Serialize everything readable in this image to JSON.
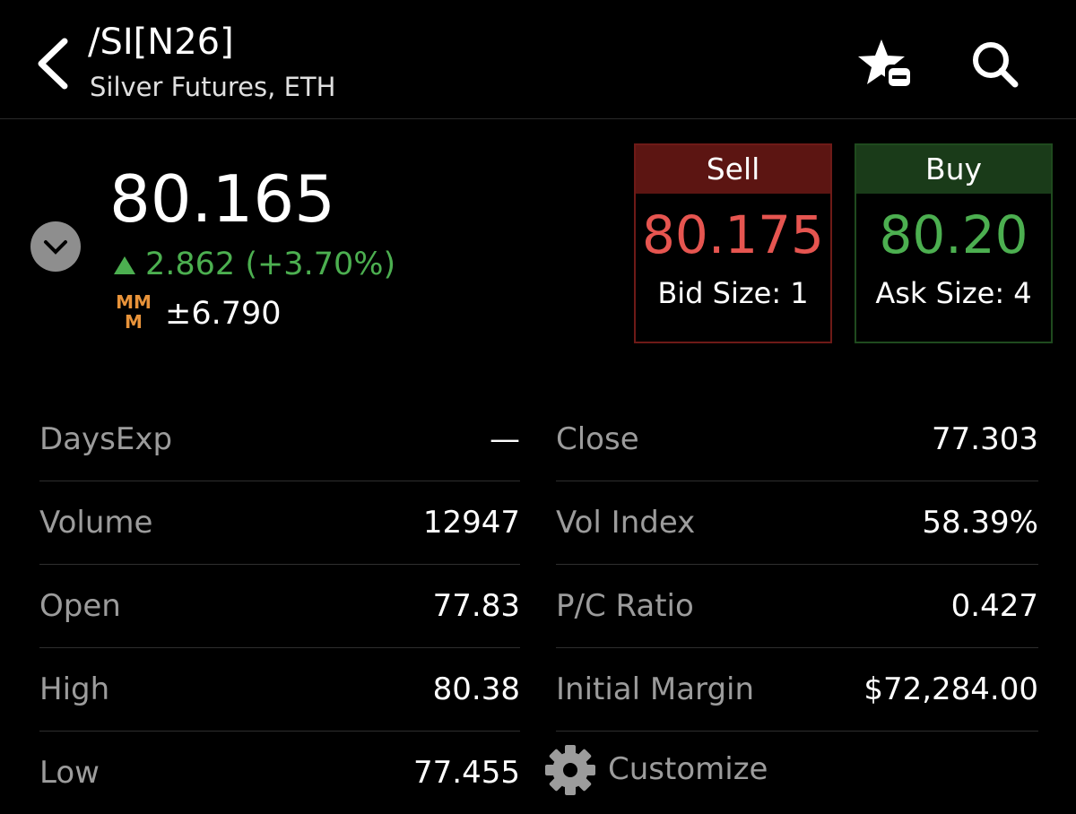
{
  "header": {
    "symbol": "/SI[N26]",
    "description": "Silver Futures, ETH"
  },
  "quote": {
    "last": "80.165",
    "change": "2.862 (+3.70%)",
    "mmm_badge": "MM M",
    "expected_move": "±6.790"
  },
  "sell": {
    "label": "Sell",
    "price": "80.175",
    "size": "Bid Size: 1"
  },
  "buy": {
    "label": "Buy",
    "price": "80.20",
    "size": "Ask Size: 4"
  },
  "table": {
    "left": [
      [
        "DaysExp",
        "—"
      ],
      [
        "Volume",
        "12947"
      ],
      [
        "Open",
        "77.83"
      ],
      [
        "High",
        "80.38"
      ],
      [
        "Low",
        "77.455"
      ]
    ],
    "right": [
      [
        "Close",
        "77.303"
      ],
      [
        "Vol Index",
        "58.39%"
      ],
      [
        "P/C Ratio",
        "0.427"
      ],
      [
        "Initial Margin",
        "$72,284.00"
      ]
    ],
    "customize": "Customize"
  }
}
